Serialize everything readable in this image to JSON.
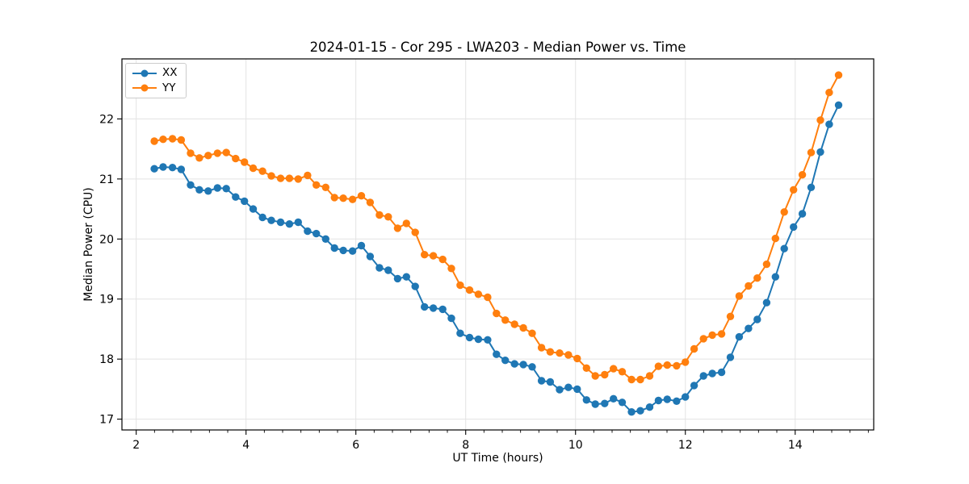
{
  "chart_data": {
    "type": "line",
    "title": "2024-01-15 - Cor 295 - LWA203 - Median Power vs. Time",
    "xlabel": "UT Time (hours)",
    "ylabel": "Median Power (CPU)",
    "xlim": [
      1.74,
      15.43
    ],
    "ylim": [
      16.82,
      23.0
    ],
    "xticks": [
      2,
      4,
      6,
      8,
      10,
      12,
      14
    ],
    "yticks": [
      17,
      18,
      19,
      20,
      21,
      22
    ],
    "x_minor_tick_interval": 0.3333,
    "grid": true,
    "legend_position": "upper left",
    "marker": "o",
    "x": [
      2.33,
      2.49,
      2.66,
      2.82,
      2.99,
      3.15,
      3.31,
      3.48,
      3.64,
      3.81,
      3.97,
      4.13,
      4.3,
      4.46,
      4.63,
      4.79,
      4.95,
      5.12,
      5.28,
      5.45,
      5.61,
      5.77,
      5.94,
      6.1,
      6.26,
      6.43,
      6.59,
      6.76,
      6.92,
      7.08,
      7.25,
      7.41,
      7.58,
      7.74,
      7.9,
      8.07,
      8.23,
      8.4,
      8.56,
      8.72,
      8.89,
      9.05,
      9.21,
      9.38,
      9.54,
      9.71,
      9.87,
      10.03,
      10.2,
      10.36,
      10.53,
      10.69,
      10.85,
      11.02,
      11.18,
      11.35,
      11.51,
      11.67,
      11.84,
      12.0,
      12.16,
      12.33,
      12.49,
      12.66,
      12.82,
      12.98,
      13.15,
      13.31,
      13.48,
      13.64,
      13.8,
      13.97,
      14.13,
      14.29,
      14.46,
      14.62,
      14.79
    ],
    "series": [
      {
        "name": "XX",
        "color": "#1f77b4",
        "values": [
          21.17,
          21.2,
          21.19,
          21.16,
          20.9,
          20.82,
          20.8,
          20.85,
          20.84,
          20.7,
          20.63,
          20.5,
          20.36,
          20.31,
          20.28,
          20.25,
          20.28,
          20.13,
          20.09,
          20.0,
          19.85,
          19.81,
          19.8,
          19.89,
          19.71,
          19.52,
          19.48,
          19.34,
          19.37,
          19.21,
          18.87,
          18.85,
          18.83,
          18.68,
          18.43,
          18.36,
          18.33,
          18.32,
          18.08,
          17.98,
          17.92,
          17.91,
          17.87,
          17.64,
          17.62,
          17.49,
          17.53,
          17.5,
          17.32,
          17.25,
          17.26,
          17.34,
          17.28,
          17.12,
          17.14,
          17.2,
          17.31,
          17.33,
          17.3,
          17.37,
          17.56,
          17.72,
          17.76,
          17.78,
          18.03,
          18.37,
          18.51,
          18.66,
          18.94,
          19.37,
          19.84,
          20.2,
          20.42,
          20.86,
          21.45,
          21.91,
          22.23
        ]
      },
      {
        "name": "YY",
        "color": "#ff7f0e",
        "values": [
          21.63,
          21.66,
          21.67,
          21.65,
          21.43,
          21.35,
          21.39,
          21.43,
          21.44,
          21.34,
          21.28,
          21.18,
          21.13,
          21.05,
          21.01,
          21.01,
          21.0,
          21.06,
          20.9,
          20.86,
          20.69,
          20.68,
          20.66,
          20.72,
          20.61,
          20.4,
          20.37,
          20.18,
          20.26,
          20.11,
          19.74,
          19.72,
          19.66,
          19.51,
          19.23,
          19.15,
          19.08,
          19.03,
          18.76,
          18.65,
          18.58,
          18.52,
          18.43,
          18.19,
          18.12,
          18.1,
          18.07,
          18.01,
          17.85,
          17.72,
          17.74,
          17.84,
          17.79,
          17.66,
          17.66,
          17.72,
          17.88,
          17.9,
          17.89,
          17.95,
          18.17,
          18.34,
          18.4,
          18.42,
          18.71,
          19.05,
          19.22,
          19.35,
          19.58,
          20.01,
          20.45,
          20.82,
          21.07,
          21.44,
          21.98,
          22.44,
          22.73
        ]
      }
    ],
    "style": {
      "grid_color": "#e3e3e3",
      "spine_color": "#000000",
      "background": "#ffffff"
    }
  }
}
